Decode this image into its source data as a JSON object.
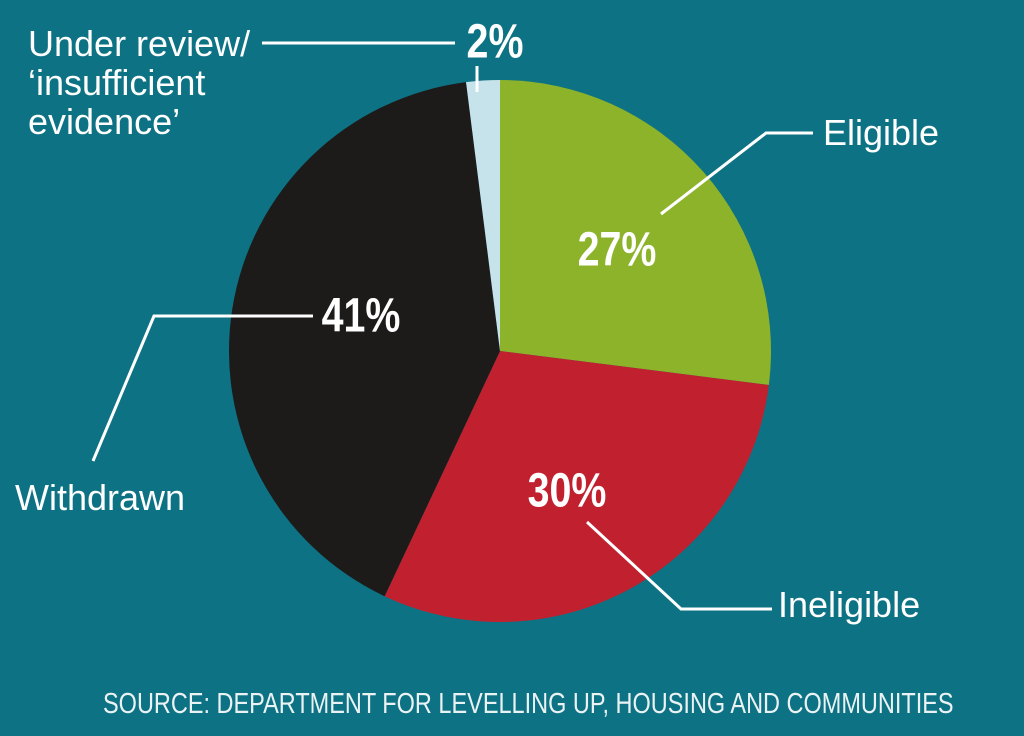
{
  "colors": {
    "background": "#0D7283",
    "text": "#FFFFFF",
    "leader_line": "#FFFFFF",
    "source_text": "#EAF2F4"
  },
  "chart_data": {
    "type": "pie",
    "unit": "percent",
    "direction": "clockwise",
    "start_angle_deg": 0,
    "legend_position": "callout-labels",
    "slices": [
      {
        "label": "Eligible",
        "value": 27,
        "color": "#8DB32B"
      },
      {
        "label": "Ineligible",
        "value": 30,
        "color": "#C1202F"
      },
      {
        "label": "Withdrawn",
        "value": 41,
        "color": "#1D1A1A"
      },
      {
        "label": "Under review/‘insufficient evidence’",
        "value": 2,
        "color": "#C6E2EB"
      }
    ]
  },
  "callouts": {
    "under_review_lines": [
      "Under review/",
      "‘insufficient",
      "evidence’"
    ],
    "eligible": "Eligible",
    "ineligible": "Ineligible",
    "withdrawn": "Withdrawn"
  },
  "source": {
    "text": "SOURCE: DEPARTMENT FOR LEVELLING UP, HOUSING AND COMMUNITIES"
  }
}
